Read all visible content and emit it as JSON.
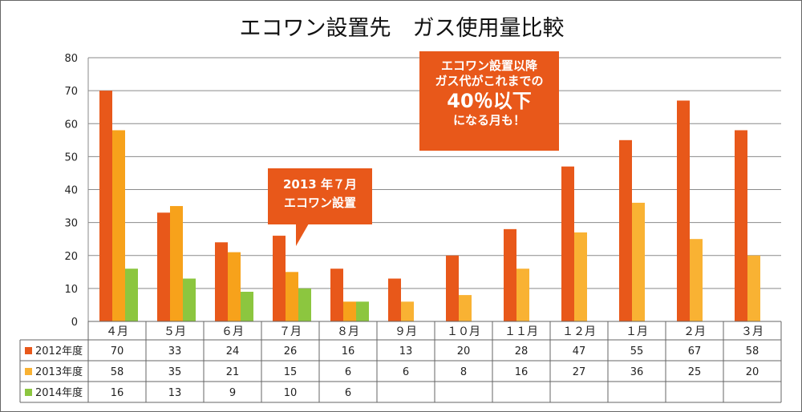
{
  "chart_data": {
    "type": "bar",
    "title": "エコワン設置先　ガス使用量比較",
    "categories": [
      "４月",
      "５月",
      "６月",
      "７月",
      "８月",
      "９月",
      "１０月",
      "１１月",
      "１２月",
      "１月",
      "２月",
      "３月"
    ],
    "series": [
      {
        "name": "2012年度",
        "color": "#e8581a",
        "values": [
          70,
          33,
          24,
          26,
          16,
          13,
          20,
          28,
          47,
          55,
          67,
          58
        ]
      },
      {
        "name": "2013年度",
        "color": "#f9b233",
        "values": [
          58,
          35,
          21,
          15,
          6,
          6,
          8,
          16,
          27,
          36,
          25,
          20
        ]
      },
      {
        "name": "2014年度",
        "color": "#8cc63f",
        "values": [
          16,
          13,
          9,
          10,
          6,
          null,
          null,
          null,
          null,
          null,
          null,
          null
        ]
      }
    ],
    "ylim": [
      0,
      80
    ],
    "yticks": [
      0,
      10,
      20,
      30,
      40,
      50,
      60,
      70,
      80
    ],
    "grid": true,
    "legend": "data-table",
    "xlabel": "",
    "ylabel": ""
  },
  "highlight_color": "#f7a21b",
  "callouts": {
    "install": {
      "line1": "2013 年７月",
      "line2": "エコワン設置"
    },
    "reduction": {
      "line1": "エコワン設置以降",
      "line2": "ガス代がこれまでの",
      "line3": "40％以下",
      "line4": "になる月も！"
    }
  }
}
